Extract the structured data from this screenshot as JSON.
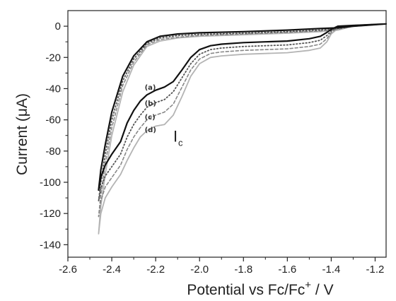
{
  "chart_data": {
    "type": "line",
    "title": "",
    "xlabel": "Potential vs Fc/Fc",
    "xlabel_sup": "+",
    "xlabel_unit": " / V",
    "ylabel_prefix": "Current (",
    "ylabel_mu": "μ",
    "ylabel_suffix": "A)",
    "xlim": [
      -2.6,
      -1.15
    ],
    "ylim": [
      -148,
      10
    ],
    "x_ticks": [
      -2.6,
      -2.4,
      -2.2,
      -2.0,
      -1.8,
      -1.6,
      -1.4,
      -1.2
    ],
    "x_tick_labels": [
      "-2.6",
      "-2.4",
      "-2.2",
      "-2.0",
      "-1.8",
      "-1.6",
      "-1.4",
      "-1.2"
    ],
    "y_ticks": [
      0,
      -20,
      -40,
      -60,
      -80,
      -100,
      -120,
      -140
    ],
    "y_tick_labels": [
      "0",
      "-20",
      "-40",
      "-60",
      "-80",
      "-100",
      "-120",
      "-140"
    ],
    "grid": false,
    "annotation": {
      "text": "I",
      "sub": "c",
      "x": -2.12,
      "y": -74
    },
    "series": [
      {
        "name": "(a)",
        "color": "#111111",
        "dash": "",
        "width": 2.2,
        "label_at": [
          -2.25,
          -39
        ],
        "forward": [
          [
            -1.15,
            1.5
          ],
          [
            -1.3,
            0
          ],
          [
            -1.37,
            -1
          ],
          [
            -1.45,
            -1.5
          ],
          [
            -1.6,
            -2.5
          ],
          [
            -1.8,
            -3.5
          ],
          [
            -2.0,
            -4.2
          ],
          [
            -2.1,
            -5
          ],
          [
            -2.18,
            -6.5
          ],
          [
            -2.24,
            -10
          ],
          [
            -2.3,
            -19
          ],
          [
            -2.35,
            -32
          ],
          [
            -2.4,
            -55
          ],
          [
            -2.43,
            -76
          ],
          [
            -2.45,
            -92
          ],
          [
            -2.46,
            -105
          ]
        ],
        "reverse": [
          [
            -2.46,
            -105
          ],
          [
            -2.45,
            -97
          ],
          [
            -2.43,
            -89
          ],
          [
            -2.4,
            -82
          ],
          [
            -2.36,
            -74
          ],
          [
            -2.33,
            -62
          ],
          [
            -2.3,
            -54
          ],
          [
            -2.27,
            -48
          ],
          [
            -2.24,
            -44
          ],
          [
            -2.2,
            -41
          ],
          [
            -2.16,
            -39
          ],
          [
            -2.12,
            -35.5
          ],
          [
            -2.08,
            -28
          ],
          [
            -2.04,
            -20
          ],
          [
            -2.0,
            -15
          ],
          [
            -1.95,
            -12.5
          ],
          [
            -1.9,
            -11.5
          ],
          [
            -1.8,
            -10.5
          ],
          [
            -1.7,
            -10
          ],
          [
            -1.6,
            -9.5
          ],
          [
            -1.5,
            -8
          ],
          [
            -1.45,
            -6.5
          ],
          [
            -1.42,
            -4
          ],
          [
            -1.4,
            -2
          ],
          [
            -1.37,
            0
          ],
          [
            -1.3,
            0.5
          ],
          [
            -1.15,
            1.5
          ]
        ]
      },
      {
        "name": "(b)",
        "color": "#555555",
        "dash": "1.5 3",
        "width": 1.8,
        "label_at": [
          -2.25,
          -49
        ],
        "forward": [
          [
            -1.15,
            1.5
          ],
          [
            -1.3,
            0
          ],
          [
            -1.37,
            -1.5
          ],
          [
            -1.45,
            -2.5
          ],
          [
            -1.6,
            -3.5
          ],
          [
            -1.8,
            -4.5
          ],
          [
            -2.0,
            -5.2
          ],
          [
            -2.1,
            -6
          ],
          [
            -2.18,
            -7.5
          ],
          [
            -2.24,
            -11
          ],
          [
            -2.3,
            -21
          ],
          [
            -2.35,
            -35
          ],
          [
            -2.4,
            -60
          ],
          [
            -2.43,
            -82
          ],
          [
            -2.45,
            -100
          ],
          [
            -2.46,
            -112
          ]
        ],
        "reverse": [
          [
            -2.46,
            -112
          ],
          [
            -2.45,
            -104
          ],
          [
            -2.43,
            -96
          ],
          [
            -2.4,
            -90
          ],
          [
            -2.36,
            -82
          ],
          [
            -2.33,
            -71
          ],
          [
            -2.3,
            -63
          ],
          [
            -2.27,
            -57
          ],
          [
            -2.24,
            -52
          ],
          [
            -2.2,
            -49
          ],
          [
            -2.16,
            -47
          ],
          [
            -2.12,
            -42
          ],
          [
            -2.08,
            -33
          ],
          [
            -2.04,
            -24
          ],
          [
            -2.0,
            -18
          ],
          [
            -1.95,
            -15
          ],
          [
            -1.9,
            -14
          ],
          [
            -1.8,
            -13
          ],
          [
            -1.7,
            -12.5
          ],
          [
            -1.6,
            -12
          ],
          [
            -1.5,
            -10.5
          ],
          [
            -1.45,
            -9
          ],
          [
            -1.42,
            -6
          ],
          [
            -1.4,
            -3
          ],
          [
            -1.37,
            -0.5
          ],
          [
            -1.3,
            0.5
          ],
          [
            -1.15,
            1.5
          ]
        ]
      },
      {
        "name": "(c)",
        "color": "#888888",
        "dash": "4 3",
        "width": 1.6,
        "label_at": [
          -2.25,
          -58
        ],
        "forward": [
          [
            -1.15,
            1.5
          ],
          [
            -1.3,
            0
          ],
          [
            -1.37,
            -2
          ],
          [
            -1.45,
            -3
          ],
          [
            -1.6,
            -4
          ],
          [
            -1.8,
            -5
          ],
          [
            -2.0,
            -6
          ],
          [
            -2.1,
            -7
          ],
          [
            -2.18,
            -8.5
          ],
          [
            -2.24,
            -12
          ],
          [
            -2.3,
            -23
          ],
          [
            -2.35,
            -38
          ],
          [
            -2.4,
            -65
          ],
          [
            -2.43,
            -88
          ],
          [
            -2.45,
            -108
          ],
          [
            -2.46,
            -122
          ]
        ],
        "reverse": [
          [
            -2.46,
            -122
          ],
          [
            -2.45,
            -112
          ],
          [
            -2.43,
            -103
          ],
          [
            -2.4,
            -97
          ],
          [
            -2.36,
            -89
          ],
          [
            -2.33,
            -79
          ],
          [
            -2.3,
            -71
          ],
          [
            -2.27,
            -65
          ],
          [
            -2.24,
            -60
          ],
          [
            -2.2,
            -57
          ],
          [
            -2.16,
            -55
          ],
          [
            -2.12,
            -50
          ],
          [
            -2.08,
            -39
          ],
          [
            -2.04,
            -28
          ],
          [
            -2.0,
            -21
          ],
          [
            -1.95,
            -17.5
          ],
          [
            -1.9,
            -16.5
          ],
          [
            -1.8,
            -15.5
          ],
          [
            -1.7,
            -15
          ],
          [
            -1.6,
            -14.5
          ],
          [
            -1.5,
            -13
          ],
          [
            -1.45,
            -11.5
          ],
          [
            -1.42,
            -8
          ],
          [
            -1.4,
            -4
          ],
          [
            -1.37,
            -1
          ],
          [
            -1.3,
            0.5
          ],
          [
            -1.15,
            1.5
          ]
        ]
      },
      {
        "name": "(d)",
        "color": "#b4b4b4",
        "dash": "",
        "width": 1.8,
        "label_at": [
          -2.25,
          -66
        ],
        "forward": [
          [
            -1.15,
            1.5
          ],
          [
            -1.3,
            0
          ],
          [
            -1.37,
            -2.5
          ],
          [
            -1.45,
            -3.5
          ],
          [
            -1.6,
            -4.5
          ],
          [
            -1.8,
            -5.5
          ],
          [
            -2.0,
            -6.5
          ],
          [
            -2.1,
            -7.5
          ],
          [
            -2.18,
            -9.5
          ],
          [
            -2.24,
            -13
          ],
          [
            -2.3,
            -25
          ],
          [
            -2.35,
            -42
          ],
          [
            -2.4,
            -70
          ],
          [
            -2.43,
            -95
          ],
          [
            -2.45,
            -115
          ],
          [
            -2.46,
            -133
          ]
        ],
        "reverse": [
          [
            -2.46,
            -133
          ],
          [
            -2.45,
            -120
          ],
          [
            -2.43,
            -110
          ],
          [
            -2.4,
            -103
          ],
          [
            -2.36,
            -95
          ],
          [
            -2.33,
            -86
          ],
          [
            -2.3,
            -78
          ],
          [
            -2.27,
            -71
          ],
          [
            -2.24,
            -67
          ],
          [
            -2.2,
            -64
          ],
          [
            -2.16,
            -63
          ],
          [
            -2.12,
            -57
          ],
          [
            -2.08,
            -45
          ],
          [
            -2.04,
            -32
          ],
          [
            -2.0,
            -24
          ],
          [
            -1.95,
            -20
          ],
          [
            -1.9,
            -19
          ],
          [
            -1.8,
            -18
          ],
          [
            -1.7,
            -17.5
          ],
          [
            -1.6,
            -17
          ],
          [
            -1.5,
            -15.5
          ],
          [
            -1.45,
            -14
          ],
          [
            -1.42,
            -10
          ],
          [
            -1.4,
            -5
          ],
          [
            -1.37,
            -1.5
          ],
          [
            -1.3,
            0.5
          ],
          [
            -1.15,
            1.5
          ]
        ]
      }
    ]
  }
}
